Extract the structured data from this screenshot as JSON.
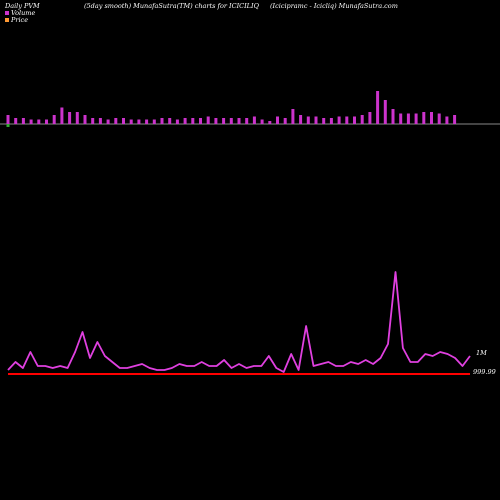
{
  "header": {
    "left": "Daily PVM",
    "mid": "(5day smooth) MunafaSutra(TM) charts for ICICILIQ",
    "right": "(Icicipramc - Icicliq) MunafaSutra.com"
  },
  "legend": {
    "volume_label": "Volume",
    "price_label": "Price",
    "volume_color": "#cc33cc",
    "price_color": "#ff9933"
  },
  "colors": {
    "volume_bar": "#cc33cc",
    "volume_down_bar": "#33aa33",
    "volume_line": "#888888",
    "pvm_line": "#e040e0",
    "price_line": "#ff0000"
  },
  "chart_data": [
    {
      "type": "bar",
      "title": "Volume",
      "values": [
        6,
        4,
        4,
        3,
        3,
        3,
        6,
        11,
        8,
        8,
        6,
        4,
        4,
        3,
        4,
        4,
        3,
        3,
        3,
        3,
        4,
        4,
        3,
        4,
        4,
        4,
        5,
        4,
        4,
        4,
        4,
        4,
        5,
        3,
        2,
        5,
        4,
        10,
        6,
        5,
        5,
        4,
        4,
        5,
        5,
        5,
        6,
        8,
        22,
        16,
        10,
        7,
        7,
        7,
        8,
        8,
        7,
        5,
        6
      ],
      "down_index": 0,
      "down_value": 2
    },
    {
      "type": "line",
      "title": "PVM",
      "end_label": "1M",
      "values": [
        3,
        7,
        4,
        12,
        5,
        5,
        4,
        5,
        4,
        12,
        22,
        9,
        17,
        10,
        7,
        4,
        4,
        5,
        6,
        4,
        3,
        3,
        4,
        6,
        5,
        5,
        7,
        5,
        5,
        8,
        4,
        6,
        4,
        5,
        5,
        10,
        4,
        2,
        11,
        3,
        25,
        5,
        6,
        7,
        5,
        5,
        7,
        6,
        8,
        6,
        9,
        16,
        52,
        14,
        7,
        7,
        11,
        10,
        12,
        11,
        9,
        5,
        10
      ]
    },
    {
      "type": "line",
      "title": "Price",
      "end_label": "999.99",
      "values": [
        999.99,
        999.99,
        999.99,
        999.99,
        999.99,
        999.99,
        999.99,
        999.99,
        999.99,
        999.99,
        999.99,
        999.99,
        999.99,
        999.99,
        999.99,
        999.99,
        999.99,
        999.99,
        999.99,
        999.99,
        999.99,
        999.99,
        999.99,
        999.99,
        999.99,
        999.99,
        999.99,
        999.99,
        999.99,
        999.99,
        999.99,
        999.99,
        999.99,
        999.99,
        999.99,
        999.99,
        999.99,
        999.99,
        999.99,
        999.99,
        999.99,
        999.99,
        999.99,
        999.99,
        999.99,
        999.99,
        999.99,
        999.99,
        999.99,
        999.99,
        999.99,
        999.99,
        999.99,
        999.99,
        999.99,
        999.99,
        999.99,
        999.99,
        999.99,
        999.99,
        999.99,
        999.99,
        999.99
      ]
    }
  ]
}
